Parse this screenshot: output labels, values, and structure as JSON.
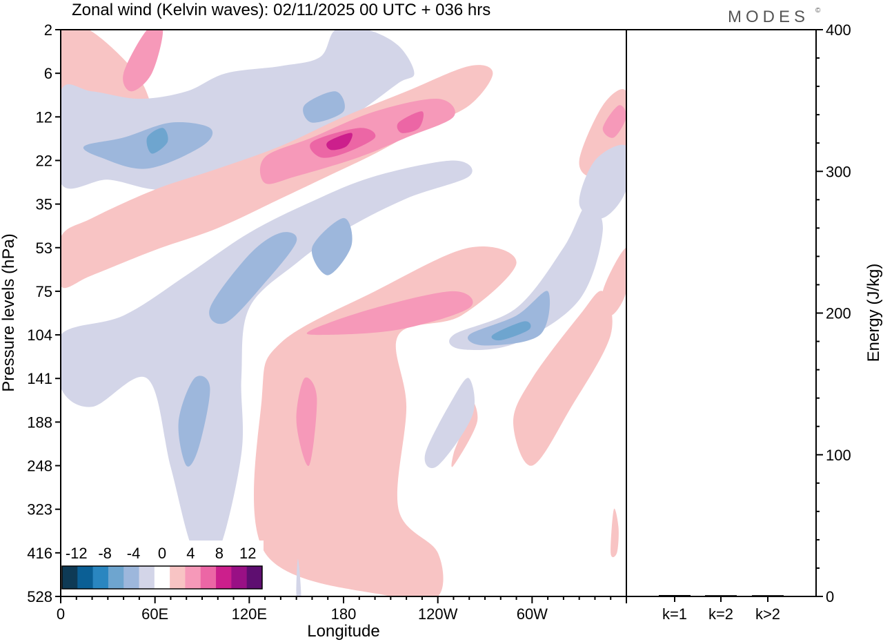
{
  "chart_data": {
    "type": "heatmap",
    "title": "Zonal wind (Kelvin waves):  02/11/2025  00 UTC  + 036 hrs",
    "logo_text": "MODES",
    "logo_mark": "©",
    "xlabel": "Longitude",
    "ylabel": "Pressure levels (hPa)",
    "x_ticks": [
      {
        "label": "0",
        "lon": 0
      },
      {
        "label": "60E",
        "lon": 60
      },
      {
        "label": "120E",
        "lon": 120
      },
      {
        "label": "180",
        "lon": 180
      },
      {
        "label": "120W",
        "lon": 240
      },
      {
        "label": "60W",
        "lon": 300
      }
    ],
    "xlim": [
      0,
      360
    ],
    "y_ticks": [
      "2",
      "6",
      "12",
      "22",
      "35",
      "53",
      "75",
      "104",
      "141",
      "188",
      "248",
      "323",
      "416",
      "528"
    ],
    "colorbar": {
      "tick_labels": [
        "-12",
        "-8",
        "-4",
        "0",
        "4",
        "8",
        "12"
      ],
      "levels": [
        -14,
        -12,
        -10,
        -8,
        -6,
        -4,
        -2,
        2,
        4,
        6,
        8,
        10,
        12,
        14
      ],
      "colors": [
        "#0e3a55",
        "#0b5f95",
        "#2a86c0",
        "#6ea5cf",
        "#9db7dc",
        "#d3d5e8",
        "#ffffff",
        "#f8c4c4",
        "#f699b9",
        "#ec66a5",
        "#cc1f8c",
        "#991085",
        "#5e0e70"
      ]
    },
    "wind_field": [
      {
        "sign": "pos",
        "path": [
          [
            0,
            2
          ],
          [
            18,
            2
          ],
          [
            48,
            6
          ],
          [
            60,
            12
          ],
          [
            68,
            22
          ],
          [
            40,
            22
          ],
          [
            10,
            18
          ],
          [
            0,
            14
          ]
        ]
      },
      {
        "sign": "pos",
        "level": 2,
        "path": [
          [
            55,
            2
          ],
          [
            65,
            2
          ],
          [
            58,
            6
          ],
          [
            45,
            8
          ],
          [
            40,
            6
          ]
        ]
      },
      {
        "sign": "neg",
        "path": [
          [
            0,
            8
          ],
          [
            20,
            8
          ],
          [
            50,
            9
          ],
          [
            80,
            8
          ],
          [
            105,
            6
          ],
          [
            140,
            5
          ],
          [
            165,
            4
          ],
          [
            175,
            2
          ],
          [
            195,
            2
          ],
          [
            215,
            3
          ],
          [
            225,
            6
          ],
          [
            215,
            7
          ],
          [
            190,
            11
          ],
          [
            160,
            16
          ],
          [
            130,
            24
          ],
          [
            100,
            30
          ],
          [
            60,
            30
          ],
          [
            30,
            27
          ],
          [
            0,
            28
          ]
        ]
      },
      {
        "sign": "neg",
        "level": 2,
        "path": [
          [
            15,
            18
          ],
          [
            40,
            16
          ],
          [
            70,
            13
          ],
          [
            95,
            14
          ],
          [
            90,
            18
          ],
          [
            55,
            24
          ],
          [
            25,
            21
          ]
        ]
      },
      {
        "sign": "neg",
        "level": 3,
        "path": [
          [
            55,
            16
          ],
          [
            65,
            14
          ],
          [
            68,
            17
          ],
          [
            58,
            20
          ]
        ]
      },
      {
        "sign": "neg",
        "level": 2,
        "path": [
          [
            155,
            10
          ],
          [
            175,
            8
          ],
          [
            180,
            11
          ],
          [
            160,
            13
          ]
        ]
      },
      {
        "sign": "pos",
        "path": [
          [
            0,
            48
          ],
          [
            20,
            40
          ],
          [
            60,
            30
          ],
          [
            100,
            24
          ],
          [
            140,
            18
          ],
          [
            180,
            12
          ],
          [
            220,
            8
          ],
          [
            260,
            5
          ],
          [
            275,
            6
          ],
          [
            260,
            10
          ],
          [
            230,
            14
          ],
          [
            200,
            20
          ],
          [
            170,
            26
          ],
          [
            140,
            33
          ],
          [
            100,
            44
          ],
          [
            60,
            54
          ],
          [
            20,
            66
          ],
          [
            0,
            72
          ]
        ]
      },
      {
        "sign": "pos",
        "level": 2,
        "path": [
          [
            130,
            21
          ],
          [
            160,
            16
          ],
          [
            200,
            11
          ],
          [
            240,
            9
          ],
          [
            250,
            12
          ],
          [
            220,
            16
          ],
          [
            190,
            21
          ],
          [
            150,
            26
          ],
          [
            130,
            28
          ]
        ]
      },
      {
        "sign": "pos",
        "level": 3,
        "path": [
          [
            160,
            17
          ],
          [
            190,
            14
          ],
          [
            200,
            16
          ],
          [
            180,
            20
          ],
          [
            165,
            21
          ]
        ]
      },
      {
        "sign": "pos",
        "level": 4,
        "path": [
          [
            170,
            17
          ],
          [
            185,
            15
          ],
          [
            182,
            18
          ],
          [
            172,
            19
          ]
        ]
      },
      {
        "sign": "pos",
        "level": 3,
        "path": [
          [
            215,
            13
          ],
          [
            230,
            11
          ],
          [
            228,
            14
          ],
          [
            217,
            15
          ]
        ]
      },
      {
        "sign": "neg",
        "path": [
          [
            0,
            104
          ],
          [
            40,
            90
          ],
          [
            80,
            66
          ],
          [
            120,
            46
          ],
          [
            160,
            34
          ],
          [
            200,
            26
          ],
          [
            250,
            22
          ],
          [
            260,
            26
          ],
          [
            220,
            33
          ],
          [
            180,
            45
          ],
          [
            150,
            60
          ],
          [
            120,
            85
          ],
          [
            115,
            140
          ],
          [
            115,
            230
          ],
          [
            100,
            416
          ],
          [
            85,
            416
          ],
          [
            70,
            250
          ],
          [
            55,
            141
          ],
          [
            20,
            170
          ],
          [
            0,
            150
          ]
        ]
      },
      {
        "sign": "neg",
        "level": 2,
        "path": [
          [
            95,
            85
          ],
          [
            120,
            56
          ],
          [
            140,
            46
          ],
          [
            150,
            50
          ],
          [
            130,
            70
          ],
          [
            105,
            95
          ]
        ]
      },
      {
        "sign": "neg",
        "level": 2,
        "path": [
          [
            160,
            53
          ],
          [
            180,
            40
          ],
          [
            185,
            52
          ],
          [
            170,
            66
          ]
        ]
      },
      {
        "sign": "neg",
        "level": 2,
        "path": [
          [
            80,
            248
          ],
          [
            75,
            188
          ],
          [
            85,
            141
          ],
          [
            95,
            150
          ],
          [
            88,
            220
          ]
        ]
      },
      {
        "sign": "neg",
        "path": [
          [
            0,
            14
          ],
          [
            5,
            14
          ],
          [
            5,
            20
          ],
          [
            0,
            22
          ]
        ]
      },
      {
        "sign": "pos",
        "path": [
          [
            130,
            416
          ],
          [
            128,
            160
          ],
          [
            140,
            110
          ],
          [
            200,
            75
          ],
          [
            260,
            53
          ],
          [
            290,
            60
          ],
          [
            255,
            90
          ],
          [
            215,
            104
          ],
          [
            220,
            170
          ],
          [
            215,
            323
          ],
          [
            240,
            416
          ],
          [
            240,
            528
          ],
          [
            210,
            528
          ]
        ]
      },
      {
        "sign": "pos",
        "level": 2,
        "path": [
          [
            160,
            100
          ],
          [
            200,
            85
          ],
          [
            250,
            75
          ],
          [
            260,
            85
          ],
          [
            215,
            100
          ],
          [
            165,
            104
          ]
        ]
      },
      {
        "sign": "pos",
        "level": 2,
        "path": [
          [
            150,
            188
          ],
          [
            155,
            141
          ],
          [
            163,
            160
          ],
          [
            158,
            248
          ]
        ]
      },
      {
        "sign": "pos",
        "path": [
          [
            250,
            248
          ],
          [
            265,
            188
          ],
          [
            260,
            160
          ],
          [
            255,
            200
          ],
          [
            250,
            230
          ]
        ]
      },
      {
        "sign": "neg",
        "path": [
          [
            250,
            104
          ],
          [
            290,
            85
          ],
          [
            320,
            53
          ],
          [
            335,
            35
          ],
          [
            345,
            45
          ],
          [
            330,
            80
          ],
          [
            290,
            110
          ],
          [
            255,
            115
          ]
        ]
      },
      {
        "sign": "neg",
        "level": 2,
        "path": [
          [
            260,
            104
          ],
          [
            290,
            90
          ],
          [
            310,
            75
          ],
          [
            305,
            104
          ],
          [
            270,
            112
          ]
        ]
      },
      {
        "sign": "neg",
        "level": 3,
        "path": [
          [
            275,
            104
          ],
          [
            295,
            94
          ],
          [
            298,
            100
          ],
          [
            280,
            108
          ]
        ]
      },
      {
        "sign": "neg",
        "path": [
          [
            232,
            230
          ],
          [
            250,
            160
          ],
          [
            260,
            141
          ],
          [
            262,
            180
          ],
          [
            240,
            248
          ]
        ]
      },
      {
        "sign": "pos",
        "path": [
          [
            288,
            188
          ],
          [
            300,
            141
          ],
          [
            330,
            90
          ],
          [
            345,
            75
          ],
          [
            350,
            104
          ],
          [
            325,
            170
          ],
          [
            300,
            248
          ]
        ]
      },
      {
        "sign": "pos",
        "path": [
          [
            345,
            75
          ],
          [
            360,
            53
          ],
          [
            360,
            75
          ],
          [
            350,
            90
          ]
        ]
      },
      {
        "sign": "pos",
        "path": [
          [
            330,
            22
          ],
          [
            345,
            10
          ],
          [
            360,
            8
          ],
          [
            360,
            18
          ],
          [
            340,
            26
          ]
        ]
      },
      {
        "sign": "pos",
        "level": 2,
        "path": [
          [
            345,
            14
          ],
          [
            355,
            10
          ],
          [
            360,
            12
          ],
          [
            352,
            16
          ]
        ]
      },
      {
        "sign": "neg",
        "path": [
          [
            330,
            35
          ],
          [
            340,
            22
          ],
          [
            360,
            18
          ],
          [
            360,
            30
          ],
          [
            345,
            40
          ]
        ]
      },
      {
        "sign": "pos",
        "path": [
          [
            350,
            416
          ],
          [
            352,
            323
          ],
          [
            355,
            360
          ],
          [
            354,
            416
          ]
        ]
      },
      {
        "sign": "neg",
        "path": [
          [
            150,
            528
          ],
          [
            151,
            430
          ],
          [
            153,
            528
          ]
        ]
      }
    ],
    "energy_panel": {
      "ylabel": "Energy (J/kg)",
      "ylim": [
        0,
        400
      ],
      "y_ticks": [
        "0",
        "100",
        "200",
        "300",
        "400"
      ],
      "categories": [
        "k=1",
        "k=2",
        "k>2"
      ],
      "values": [
        0.5,
        0.4,
        0.4
      ]
    }
  }
}
